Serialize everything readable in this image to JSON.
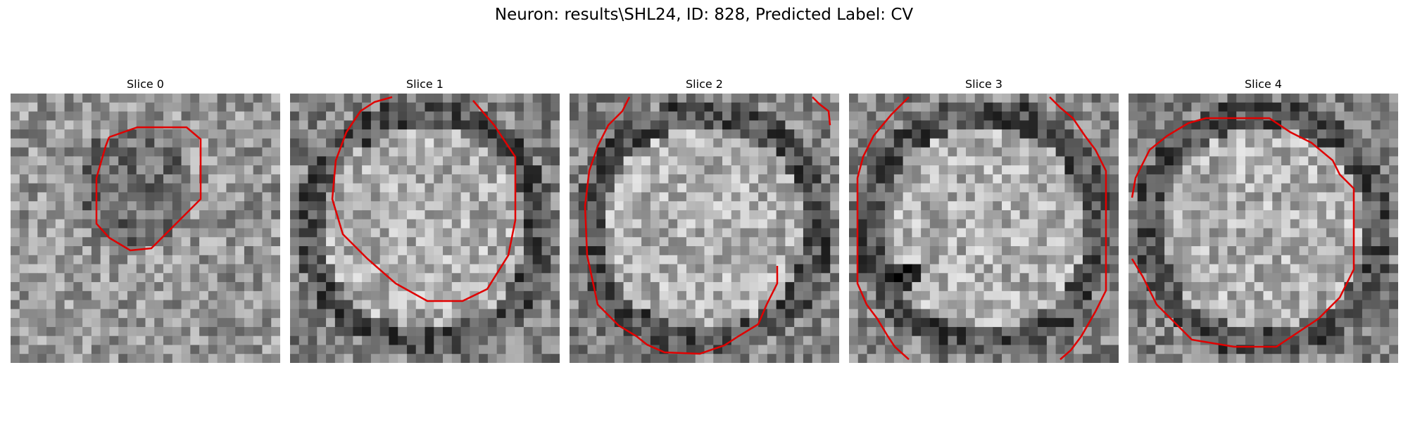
{
  "figure": {
    "title": "Neuron: results\\SHL24, ID: 828, Predicted Label: CV"
  },
  "panels": [
    {
      "title": "Slice 0",
      "seed": 11,
      "style": "dark-center"
    },
    {
      "title": "Slice 1",
      "seed": 23,
      "style": "light-cell"
    },
    {
      "title": "Slice 2",
      "seed": 37,
      "style": "light-cell"
    },
    {
      "title": "Slice 3",
      "seed": 41,
      "style": "light-cell-dark-spot"
    },
    {
      "title": "Slice 4",
      "seed": 53,
      "style": "light-cell"
    }
  ],
  "colors": {
    "contour": "#e00000"
  }
}
